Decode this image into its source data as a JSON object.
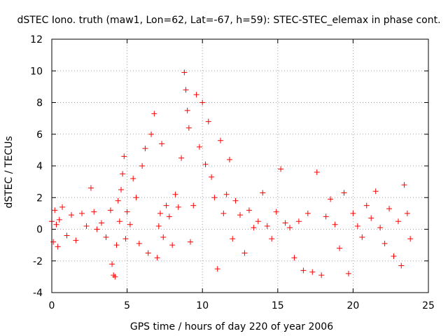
{
  "chart_data": {
    "type": "scatter",
    "title": "dSTEC Iono. truth (maw1, Lon=62, Lat=-67, h=59): STEC-STEC_elemax in phase cont.",
    "xlabel": "GPS time / hours of day 220 of year 2006",
    "ylabel": "dSTEC  / TECUs",
    "xlim": [
      0,
      25
    ],
    "ylim": [
      -4,
      12
    ],
    "x_ticks": [
      0,
      5,
      10,
      15,
      20,
      25
    ],
    "y_ticks": [
      -4,
      -2,
      0,
      2,
      4,
      6,
      8,
      10,
      12
    ],
    "grid": true,
    "marker": "+",
    "color": "#ff0000",
    "series": [
      {
        "name": "dSTEC",
        "x": [
          0.0,
          0.1,
          0.2,
          0.3,
          0.4,
          0.5,
          0.7,
          1.0,
          1.3,
          1.6,
          2.0,
          2.3,
          2.6,
          2.8,
          3.0,
          3.3,
          3.6,
          3.9,
          4.0,
          4.1,
          4.2,
          4.3,
          4.4,
          4.5,
          4.6,
          4.7,
          4.8,
          4.9,
          5.0,
          5.2,
          5.4,
          5.6,
          5.8,
          6.0,
          6.2,
          6.4,
          6.6,
          6.8,
          7.0,
          7.1,
          7.2,
          7.3,
          7.4,
          7.6,
          7.8,
          8.0,
          8.2,
          8.4,
          8.6,
          8.8,
          8.9,
          9.0,
          9.1,
          9.2,
          9.4,
          9.6,
          9.8,
          10.0,
          10.2,
          10.4,
          10.6,
          10.8,
          11.0,
          11.2,
          11.4,
          11.6,
          11.8,
          12.0,
          12.2,
          12.5,
          12.8,
          13.1,
          13.4,
          13.7,
          14.0,
          14.3,
          14.6,
          14.9,
          15.2,
          15.5,
          15.8,
          16.1,
          16.4,
          16.7,
          17.0,
          17.3,
          17.6,
          17.9,
          18.2,
          18.5,
          18.8,
          19.1,
          19.4,
          19.7,
          20.0,
          20.3,
          20.6,
          20.9,
          21.2,
          21.5,
          21.8,
          22.1,
          22.4,
          22.7,
          23.0,
          23.2,
          23.4,
          23.6,
          23.8
        ],
        "y": [
          0.5,
          -0.8,
          1.2,
          0.3,
          -1.1,
          0.6,
          1.4,
          -0.4,
          0.9,
          -0.7,
          1.0,
          0.2,
          2.6,
          1.1,
          0.0,
          0.4,
          -0.5,
          1.2,
          -2.2,
          -2.9,
          -3.0,
          -1.0,
          1.8,
          0.5,
          2.5,
          3.5,
          4.6,
          -0.6,
          1.1,
          0.3,
          3.2,
          2.0,
          -0.9,
          4.0,
          5.1,
          -1.5,
          6.0,
          7.3,
          -1.8,
          0.2,
          1.0,
          5.4,
          -0.5,
          1.5,
          0.8,
          -1.0,
          2.2,
          1.4,
          4.5,
          9.9,
          8.8,
          7.5,
          6.4,
          -0.8,
          1.5,
          8.5,
          5.2,
          8.0,
          4.1,
          6.8,
          3.3,
          2.0,
          -2.5,
          5.6,
          1.0,
          2.2,
          4.4,
          -0.6,
          1.8,
          0.9,
          -1.5,
          1.2,
          0.1,
          0.5,
          2.3,
          0.2,
          -0.6,
          1.1,
          3.8,
          0.4,
          0.1,
          -1.8,
          0.5,
          -2.6,
          1.0,
          -2.7,
          3.6,
          -2.9,
          0.8,
          1.9,
          0.3,
          -1.2,
          2.3,
          -2.8,
          1.0,
          0.2,
          -0.5,
          1.5,
          0.7,
          2.4,
          0.1,
          -0.9,
          1.3,
          -1.7,
          0.5,
          -2.3,
          2.8,
          1.0,
          -0.6
        ]
      }
    ]
  }
}
